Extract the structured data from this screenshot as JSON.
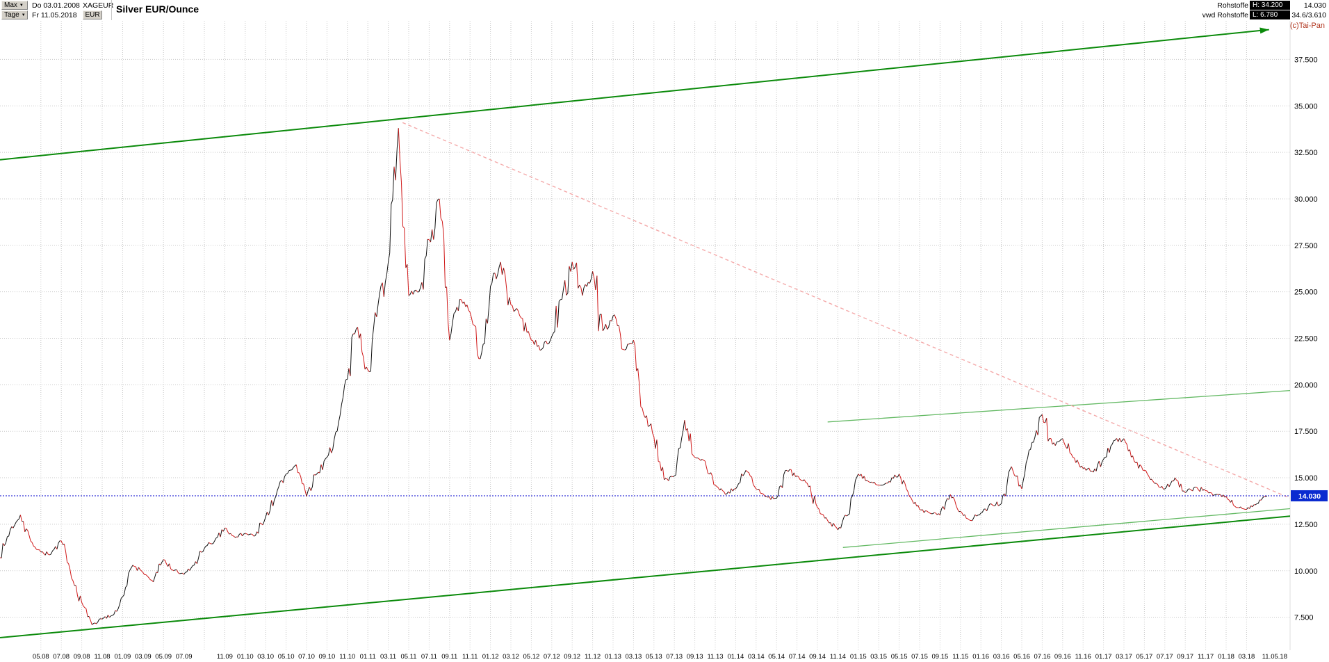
{
  "header": {
    "range_button": "Max",
    "period_button": "Tage",
    "caret_glyph": "▼",
    "start_date": "Do 03.01.2008",
    "end_date": "Fr 11.05.2018",
    "symbol": "XAGEUR",
    "currency": "EUR",
    "title": "Silver EUR/Ounce",
    "feed_name": "Rohstoffe",
    "feed_provider": "vwd Rohstoffe",
    "high_label": "H: 34.200",
    "low_label": "L: 6.780",
    "last_price": "14.030",
    "range_display": "34.6/3.610",
    "copyright": "(c)Tai-Pan"
  },
  "chart_data": {
    "type": "line",
    "title": "Silver EUR/Ounce",
    "x_start": "2008-01",
    "x_end": "2018-05",
    "x_unit": "months",
    "ylim": [
      -1.9,
      39.6
    ],
    "grid": true,
    "legend": "none",
    "y_ticks": [
      {
        "label": "37.500",
        "value": 37.5
      },
      {
        "label": "35.000",
        "value": 35.0
      },
      {
        "label": "32.500",
        "value": 32.5
      },
      {
        "label": "30.000",
        "value": 30.0
      },
      {
        "label": "27.500",
        "value": 27.5
      },
      {
        "label": "25.000",
        "value": 25.0
      },
      {
        "label": "22.500",
        "value": 22.5
      },
      {
        "label": "20.000",
        "value": 20.0
      },
      {
        "label": "17.500",
        "value": 17.5
      },
      {
        "label": "15.000",
        "value": 15.0
      },
      {
        "label": "12.500",
        "value": 12.5
      },
      {
        "label": "10.000",
        "value": 10.0
      },
      {
        "label": "7.500",
        "value": 7.5
      }
    ],
    "x_tick_start_month": 4,
    "x_tick_step_months": 2,
    "x_tick_labels": [
      "05.08",
      "07.08",
      "09.08",
      "11.08",
      "01.09",
      "03.09",
      "05.09",
      "07.09",
      "",
      "11.09",
      "01.10",
      "03.10",
      "05.10",
      "07.10",
      "09.10",
      "11.10",
      "01.11",
      "03.11",
      "05.11",
      "07.11",
      "09.11",
      "11.11",
      "01.12",
      "03.12",
      "05.12",
      "07.12",
      "09.12",
      "11.12",
      "01.13",
      "03.13",
      "05.13",
      "07.13",
      "09.13",
      "11.13",
      "01.14",
      "03.14",
      "05.14",
      "07.14",
      "09.14",
      "11.14",
      "01.15",
      "03.15",
      "05.15",
      "07.15",
      "09.15",
      "11.15",
      "01.16",
      "03.16",
      "05.16",
      "07.16",
      "09.16",
      "11.16",
      "01.17",
      "03.17",
      "05.17",
      "07.17",
      "09.17",
      "11.17",
      "01.18",
      "03.18"
    ],
    "last_date_label": "11.05.18",
    "current_price": 14.03,
    "current_price_label": "14.030",
    "period_high": 34.2,
    "period_low": 6.78,
    "series": [
      {
        "name": "Silver EUR/Ounce (XAGEUR) monthly",
        "values": [
          10.7,
          12.2,
          13.0,
          11.6,
          11.0,
          10.9,
          11.6,
          9.6,
          8.3,
          7.1,
          7.4,
          7.6,
          8.6,
          10.3,
          9.9,
          9.4,
          10.6,
          10.0,
          9.8,
          10.3,
          11.2,
          11.6,
          12.3,
          11.8,
          12.0,
          11.9,
          12.9,
          14.0,
          15.2,
          15.7,
          14.0,
          15.2,
          16.1,
          17.5,
          20.3,
          23.1,
          20.8,
          24.3,
          26.6,
          33.8,
          24.8,
          25.0,
          27.8,
          30.0,
          22.4,
          24.6,
          23.9,
          21.4,
          25.3,
          26.6,
          24.3,
          23.6,
          22.4,
          21.9,
          22.6,
          24.6,
          26.6,
          24.8,
          26.1,
          22.9,
          23.7,
          21.9,
          22.4,
          18.4,
          17.2,
          14.9,
          15.1,
          18.1,
          16.1,
          15.9,
          14.6,
          14.1,
          14.4,
          15.4,
          14.4,
          14.0,
          13.9,
          15.4,
          15.1,
          14.7,
          13.4,
          12.7,
          12.2,
          13.0,
          15.2,
          14.8,
          14.6,
          14.8,
          15.2,
          14.0,
          13.3,
          13.1,
          13.0,
          14.1,
          13.2,
          12.7,
          13.1,
          13.6,
          13.6,
          15.6,
          14.4,
          16.9,
          18.4,
          16.8,
          17.1,
          16.1,
          15.5,
          15.3,
          16.0,
          17.0,
          17.1,
          15.9,
          15.4,
          14.7,
          14.4,
          15.0,
          14.2,
          14.5,
          14.3,
          14.1,
          14.0,
          13.4,
          13.3,
          13.6,
          14.03
        ]
      }
    ],
    "trendlines": [
      {
        "name": "upper-channel",
        "m1": 0,
        "p1": 32.1,
        "m2": 124.2,
        "p2": 39.1,
        "color": "#0a8a0a",
        "width": 2,
        "arrow": true
      },
      {
        "name": "lower-channel",
        "m1": 0,
        "p1": 6.4,
        "m2": 126.5,
        "p2": 12.95,
        "color": "#0a8a0a",
        "width": 2
      },
      {
        "name": "inner-upper",
        "m1": 81,
        "p1": 18.0,
        "m2": 126.5,
        "p2": 19.7,
        "color": "#63b963",
        "width": 1.3
      },
      {
        "name": "inner-lower",
        "m1": 82.5,
        "p1": 11.25,
        "m2": 126.5,
        "p2": 13.35,
        "color": "#63b963",
        "width": 1.3
      },
      {
        "name": "downtrend-resistance",
        "m1": 39.4,
        "p1": 34.1,
        "m2": 126.5,
        "p2": 13.85,
        "color": "#f4a9a9",
        "width": 1.4,
        "dash": "5 4"
      }
    ],
    "colors": {
      "up": "#101010",
      "down": "#d01818",
      "channel": "#0a8a0a",
      "inner_channel": "#63b963",
      "downtrend": "#f4a9a9",
      "hline": "#0000cc",
      "grid": "#c8c8c8",
      "label_box": "#0a2ad0"
    }
  }
}
